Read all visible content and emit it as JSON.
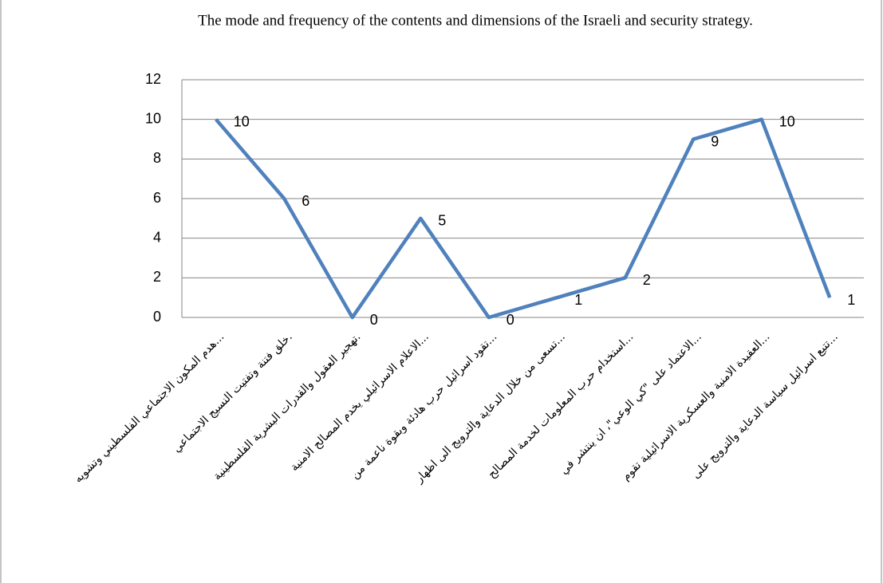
{
  "chart_data": {
    "type": "line",
    "title": "The mode and frequency of the contents and dimensions of the Israeli and security strategy.",
    "categories": [
      "هدم المكون الاجتماعي الفلسطيني وتشويه...",
      "خلق فتنة وتفتيت النسيج الاجتماعي.",
      "تهجير العقول والقدرات البشرية الفلسطينية.",
      "الاعلام الاسرائيلي يخدم المصالح الامنية...",
      "تقود اسرائيل حرب هادئة وبقوة ناعمة من...",
      "تسعى من خلال الدعاية والترويج الى اظهار...",
      "استخدام حرب المعلومات لخدمة المصالح...",
      "الاعتماد على \"كي الوعي\"، ان ينتشر في...",
      "العقيدة الامنية والعسكرية الاسرائيلية تقوم...",
      "تتبع اسرائيل سياسة الدعاية والترويج على..."
    ],
    "values": [
      10,
      6,
      0,
      5,
      0,
      1,
      2,
      9,
      10,
      1
    ],
    "color": "#4f81bd",
    "ylim": [
      0,
      12
    ],
    "yticks": [
      0,
      2,
      4,
      6,
      8,
      10,
      12
    ],
    "grid": true
  }
}
